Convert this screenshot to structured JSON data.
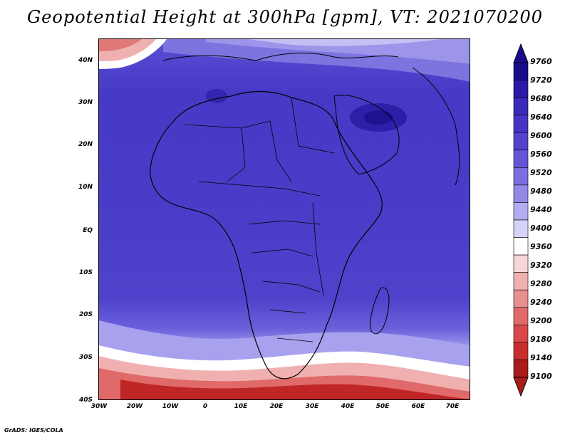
{
  "title": "Geopotential Height at 300hPa [gpm], VT: 2021070200",
  "footer": "GrADS: IGES/COLA",
  "map": {
    "lat_labels": [
      "40N",
      "30N",
      "20N",
      "10N",
      "EQ",
      "10S",
      "20S",
      "30S",
      "40S"
    ],
    "lon_labels": [
      "30W",
      "20W",
      "10W",
      "0",
      "10E",
      "20E",
      "30E",
      "40E",
      "50E",
      "60E",
      "70E"
    ],
    "lon_range": [
      -30,
      75
    ],
    "lat_range": [
      -40,
      45
    ]
  },
  "colorbar": {
    "levels": [
      "9760",
      "9720",
      "9680",
      "9640",
      "9600",
      "9560",
      "9520",
      "9480",
      "9440",
      "9400",
      "9360",
      "9320",
      "9280",
      "9240",
      "9200",
      "9180",
      "9140",
      "9100"
    ],
    "colors": [
      "#1a0d8c",
      "#2a1aa6",
      "#3a2bb8",
      "#4535c4",
      "#5242cc",
      "#6455d6",
      "#7a6ee0",
      "#938ae8",
      "#b2acf0",
      "#d6d3f8",
      "#ffffff",
      "#f7d6d6",
      "#f0b0b0",
      "#e88f8f",
      "#e06a6a",
      "#d84848",
      "#c92e2e",
      "#a81c1c"
    ]
  }
}
